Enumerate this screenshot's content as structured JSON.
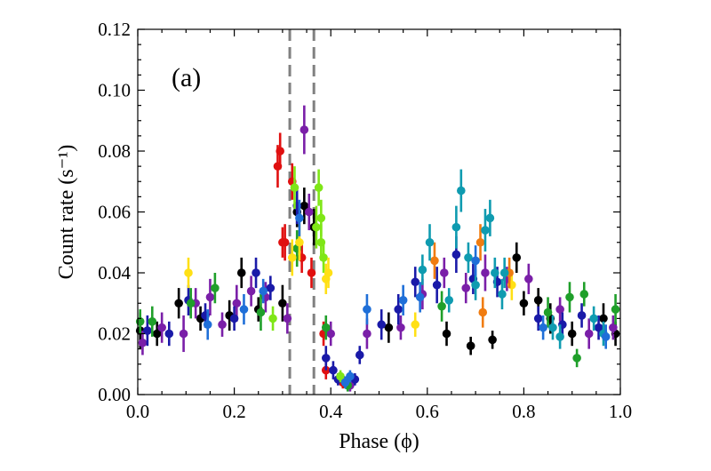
{
  "chart_data": {
    "type": "scatter",
    "panel_label": "(a)",
    "xlabel": "Phase (ϕ)",
    "ylabel": "Count rate (s⁻¹)",
    "xlim": [
      0.0,
      1.0
    ],
    "ylim": [
      0.0,
      0.12
    ],
    "x_ticks": [
      "0.0",
      "0.2",
      "0.4",
      "0.6",
      "0.8",
      "1.0"
    ],
    "y_ticks": [
      "0.00",
      "0.02",
      "0.04",
      "0.06",
      "0.08",
      "0.10",
      "0.12"
    ],
    "vlines": [
      0.315,
      0.365
    ],
    "vline_color": "#808080",
    "grid": false,
    "legend": "none",
    "series": [
      {
        "color": "#000000",
        "points": [
          [
            0.005,
            0.021,
            0.006
          ],
          [
            0.04,
            0.02,
            0.004
          ],
          [
            0.085,
            0.03,
            0.005
          ],
          [
            0.13,
            0.025,
            0.004
          ],
          [
            0.19,
            0.026,
            0.005
          ],
          [
            0.215,
            0.04,
            0.005
          ],
          [
            0.25,
            0.028,
            0.004
          ],
          [
            0.3,
            0.03,
            0.006
          ],
          [
            0.33,
            0.06,
            0.005
          ],
          [
            0.345,
            0.062,
            0.006
          ],
          [
            0.365,
            0.055,
            0.006
          ],
          [
            0.52,
            0.022,
            0.005
          ],
          [
            0.64,
            0.02,
            0.004
          ],
          [
            0.69,
            0.016,
            0.003
          ],
          [
            0.735,
            0.018,
            0.003
          ],
          [
            0.785,
            0.045,
            0.005
          ],
          [
            0.8,
            0.03,
            0.004
          ],
          [
            0.83,
            0.031,
            0.004
          ],
          [
            0.855,
            0.025,
            0.005
          ],
          [
            0.9,
            0.02,
            0.004
          ],
          [
            0.965,
            0.025,
            0.005
          ],
          [
            0.99,
            0.02,
            0.004
          ]
        ]
      },
      {
        "color": "#e01010",
        "points": [
          [
            0.29,
            0.075,
            0.007
          ],
          [
            0.295,
            0.08,
            0.006
          ],
          [
            0.305,
            0.05,
            0.006
          ],
          [
            0.3,
            0.05,
            0.005
          ],
          [
            0.32,
            0.07,
            0.006
          ],
          [
            0.34,
            0.045,
            0.005
          ],
          [
            0.36,
            0.04,
            0.005
          ],
          [
            0.385,
            0.02,
            0.004
          ],
          [
            0.39,
            0.008,
            0.003
          ],
          [
            0.425,
            0.004,
            0.002
          ]
        ]
      },
      {
        "color": "#7a1fa8",
        "points": [
          [
            0.01,
            0.017,
            0.004
          ],
          [
            0.05,
            0.022,
            0.005
          ],
          [
            0.095,
            0.02,
            0.006
          ],
          [
            0.12,
            0.03,
            0.005
          ],
          [
            0.15,
            0.032,
            0.006
          ],
          [
            0.175,
            0.023,
            0.004
          ],
          [
            0.205,
            0.03,
            0.006
          ],
          [
            0.235,
            0.034,
            0.005
          ],
          [
            0.265,
            0.032,
            0.005
          ],
          [
            0.31,
            0.025,
            0.005
          ],
          [
            0.345,
            0.087,
            0.008
          ],
          [
            0.355,
            0.06,
            0.006
          ],
          [
            0.4,
            0.02,
            0.004
          ],
          [
            0.44,
            0.003,
            0.002
          ],
          [
            0.475,
            0.02,
            0.005
          ],
          [
            0.545,
            0.022,
            0.004
          ],
          [
            0.59,
            0.033,
            0.005
          ],
          [
            0.635,
            0.04,
            0.005
          ],
          [
            0.68,
            0.035,
            0.005
          ],
          [
            0.72,
            0.04,
            0.006
          ],
          [
            0.765,
            0.038,
            0.004
          ],
          [
            0.81,
            0.038,
            0.005
          ],
          [
            0.875,
            0.028,
            0.004
          ],
          [
            0.935,
            0.02,
            0.005
          ],
          [
            0.985,
            0.022,
            0.004
          ]
        ]
      },
      {
        "color": "#1a1aa8",
        "points": [
          [
            0.02,
            0.021,
            0.005
          ],
          [
            0.065,
            0.02,
            0.004
          ],
          [
            0.105,
            0.031,
            0.005
          ],
          [
            0.14,
            0.026,
            0.004
          ],
          [
            0.2,
            0.025,
            0.004
          ],
          [
            0.245,
            0.04,
            0.005
          ],
          [
            0.275,
            0.035,
            0.004
          ],
          [
            0.33,
            0.062,
            0.006
          ],
          [
            0.39,
            0.012,
            0.004
          ],
          [
            0.405,
            0.008,
            0.003
          ],
          [
            0.415,
            0.005,
            0.002
          ],
          [
            0.45,
            0.005,
            0.002
          ],
          [
            0.46,
            0.013,
            0.003
          ],
          [
            0.505,
            0.023,
            0.005
          ],
          [
            0.54,
            0.028,
            0.005
          ],
          [
            0.575,
            0.037,
            0.005
          ],
          [
            0.62,
            0.036,
            0.006
          ],
          [
            0.66,
            0.046,
            0.006
          ],
          [
            0.695,
            0.038,
            0.005
          ],
          [
            0.745,
            0.037,
            0.005
          ],
          [
            0.83,
            0.025,
            0.004
          ],
          [
            0.88,
            0.023,
            0.004
          ],
          [
            0.92,
            0.026,
            0.004
          ],
          [
            0.955,
            0.022,
            0.004
          ]
        ]
      },
      {
        "color": "#1f9f2a",
        "points": [
          [
            0.005,
            0.024,
            0.004
          ],
          [
            0.03,
            0.024,
            0.005
          ],
          [
            0.11,
            0.03,
            0.005
          ],
          [
            0.16,
            0.035,
            0.005
          ],
          [
            0.255,
            0.027,
            0.006
          ],
          [
            0.33,
            0.048,
            0.006
          ],
          [
            0.39,
            0.022,
            0.004
          ],
          [
            0.435,
            0.003,
            0.002
          ],
          [
            0.63,
            0.029,
            0.005
          ],
          [
            0.85,
            0.027,
            0.005
          ],
          [
            0.895,
            0.032,
            0.005
          ],
          [
            0.91,
            0.012,
            0.003
          ],
          [
            0.925,
            0.033,
            0.004
          ],
          [
            0.99,
            0.028,
            0.005
          ]
        ]
      },
      {
        "color": "#7fe617",
        "points": [
          [
            0.28,
            0.025,
            0.004
          ],
          [
            0.325,
            0.068,
            0.007
          ],
          [
            0.37,
            0.055,
            0.007
          ],
          [
            0.375,
            0.068,
            0.006
          ],
          [
            0.38,
            0.05,
            0.006
          ],
          [
            0.38,
            0.058,
            0.006
          ],
          [
            0.385,
            0.045,
            0.005
          ],
          [
            0.42,
            0.006,
            0.002
          ]
        ]
      },
      {
        "color": "#ffe015",
        "points": [
          [
            0.105,
            0.04,
            0.005
          ],
          [
            0.32,
            0.045,
            0.006
          ],
          [
            0.335,
            0.05,
            0.006
          ],
          [
            0.39,
            0.038,
            0.005
          ],
          [
            0.395,
            0.04,
            0.005
          ],
          [
            0.575,
            0.023,
            0.004
          ],
          [
            0.775,
            0.036,
            0.005
          ]
        ]
      },
      {
        "color": "#f07c10",
        "points": [
          [
            0.615,
            0.044,
            0.006
          ],
          [
            0.71,
            0.05,
            0.006
          ],
          [
            0.715,
            0.027,
            0.005
          ],
          [
            0.77,
            0.04,
            0.005
          ]
        ]
      },
      {
        "color": "#0f9bb0",
        "points": [
          [
            0.59,
            0.041,
            0.005
          ],
          [
            0.605,
            0.05,
            0.006
          ],
          [
            0.645,
            0.031,
            0.004
          ],
          [
            0.66,
            0.055,
            0.007
          ],
          [
            0.67,
            0.067,
            0.007
          ],
          [
            0.685,
            0.045,
            0.005
          ],
          [
            0.7,
            0.036,
            0.005
          ],
          [
            0.72,
            0.054,
            0.007
          ],
          [
            0.73,
            0.058,
            0.006
          ],
          [
            0.74,
            0.04,
            0.005
          ],
          [
            0.755,
            0.033,
            0.005
          ],
          [
            0.76,
            0.04,
            0.005
          ],
          [
            0.86,
            0.022,
            0.004
          ],
          [
            0.875,
            0.019,
            0.004
          ],
          [
            0.945,
            0.025,
            0.004
          ],
          [
            0.965,
            0.02,
            0.004
          ]
        ]
      },
      {
        "color": "#1f6fd8",
        "points": [
          [
            0.145,
            0.023,
            0.005
          ],
          [
            0.22,
            0.028,
            0.005
          ],
          [
            0.26,
            0.034,
            0.004
          ],
          [
            0.335,
            0.058,
            0.006
          ],
          [
            0.43,
            0.004,
            0.002
          ],
          [
            0.44,
            0.006,
            0.002
          ],
          [
            0.475,
            0.028,
            0.005
          ],
          [
            0.55,
            0.031,
            0.005
          ],
          [
            0.585,
            0.032,
            0.005
          ],
          [
            0.7,
            0.044,
            0.005
          ],
          [
            0.84,
            0.022,
            0.004
          ],
          [
            0.97,
            0.019,
            0.004
          ]
        ]
      }
    ]
  }
}
